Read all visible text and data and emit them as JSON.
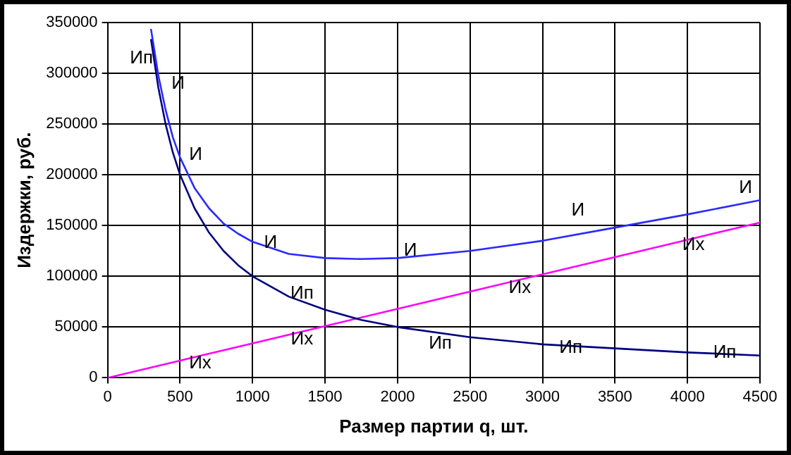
{
  "chart_data": {
    "type": "line",
    "xlabel": "Размер партии q, шт.",
    "ylabel": "Издержки, руб.",
    "xlim": [
      0,
      4500
    ],
    "xticks": [
      0,
      500,
      1000,
      1500,
      2000,
      2500,
      3000,
      3500,
      4000,
      4500
    ],
    "ylim": [
      0,
      350000
    ],
    "yticks": [
      0,
      50000,
      100000,
      150000,
      200000,
      250000,
      300000,
      350000
    ],
    "grid": true,
    "legend": false,
    "marker": "none",
    "line_style": "solid",
    "series": [
      {
        "color": "#000080",
        "x": [
          300,
          350,
          400,
          450,
          500,
          600,
          700,
          800,
          900,
          1000,
          1250,
          1500,
          1750,
          2000,
          2500,
          3000,
          3500,
          4000,
          4500
        ],
        "values": [
          333000,
          286000,
          250000,
          222000,
          200000,
          167000,
          143000,
          125000,
          111000,
          100000,
          80000,
          67000,
          57000,
          50000,
          40000,
          33000,
          29000,
          25000,
          22000
        ]
      },
      {
        "color": "#2a2aff",
        "x": [
          300,
          350,
          400,
          450,
          500,
          600,
          700,
          800,
          900,
          1000,
          1250,
          1500,
          1750,
          2000,
          2500,
          3000,
          3500,
          4000,
          4500
        ],
        "values": [
          343000,
          298000,
          264000,
          237000,
          217000,
          187000,
          167000,
          152000,
          142000,
          134000,
          122000,
          118000,
          117000,
          118000,
          125000,
          135000,
          148000,
          161000,
          175000
        ]
      },
      {
        "color": "#ff00ff",
        "x": [
          0,
          500,
          1000,
          1500,
          2000,
          2500,
          3000,
          3500,
          4000,
          4500
        ],
        "values": [
          0,
          17000,
          34000,
          51000,
          68000,
          85000,
          102000,
          119000,
          136000,
          153000
        ]
      }
    ],
    "annotations": [
      "Ип",
      "И",
      "И",
      "И",
      "Ип",
      "Их",
      "Их",
      "И",
      "Ип",
      "Их",
      "Ип",
      "И",
      "Их",
      "Ип",
      "И"
    ]
  }
}
